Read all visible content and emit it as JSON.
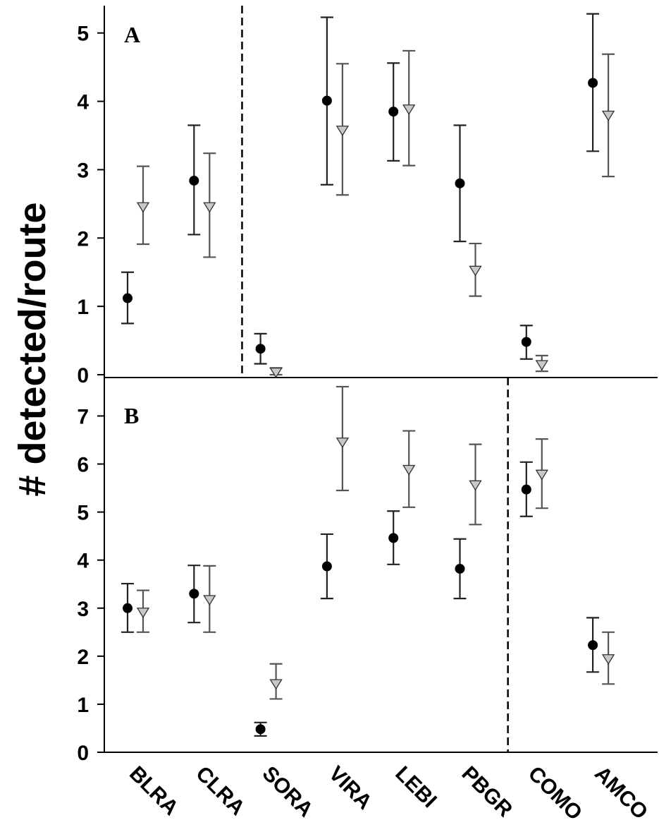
{
  "chart_data": {
    "type": "scatter",
    "ylabel": "# detected/route",
    "categories": [
      "BLRA",
      "CLRA",
      "SORA",
      "VIRA",
      "LEBI",
      "PBGR",
      "COMO",
      "AMCO"
    ],
    "panels": [
      {
        "label": "A",
        "ylim": [
          0,
          5.4
        ],
        "yticks": [
          "0",
          "1",
          "2",
          "3",
          "4",
          "5"
        ],
        "divider_after_category": "CLRA",
        "series": [
          {
            "marker": "circle",
            "color": "#000000",
            "values": [
              1.12,
              2.84,
              0.38,
              4.01,
              3.85,
              2.8,
              0.48,
              4.27
            ],
            "lower": [
              0.75,
              2.05,
              0.16,
              2.78,
              3.13,
              1.95,
              0.23,
              3.27
            ],
            "upper": [
              1.5,
              3.65,
              0.6,
              5.23,
              4.56,
              3.65,
              0.72,
              5.28
            ]
          },
          {
            "marker": "triangle-down",
            "color": "#c8c8c8",
            "values": [
              2.46,
              2.46,
              0.04,
              3.58,
              3.89,
              1.53,
              0.15,
              3.8
            ],
            "lower": [
              1.91,
              1.72,
              0.0,
              2.63,
              3.06,
              1.15,
              0.05,
              2.9
            ],
            "upper": [
              3.05,
              3.24,
              0.1,
              4.55,
              4.74,
              1.92,
              0.28,
              4.69
            ]
          }
        ]
      },
      {
        "label": "B",
        "ylim": [
          0,
          7.8
        ],
        "yticks": [
          "0",
          "1",
          "2",
          "3",
          "4",
          "5",
          "6",
          "7"
        ],
        "divider_after_category": "PBGR",
        "series": [
          {
            "marker": "circle",
            "color": "#000000",
            "values": [
              3.0,
              3.3,
              0.48,
              3.87,
              4.46,
              3.82,
              5.47,
              2.23
            ],
            "lower": [
              2.5,
              2.7,
              0.34,
              3.2,
              3.91,
              3.2,
              4.91,
              1.67
            ],
            "upper": [
              3.51,
              3.89,
              0.62,
              4.54,
              5.02,
              4.44,
              6.04,
              2.8
            ]
          },
          {
            "marker": "triangle-down",
            "color": "#c8c8c8",
            "values": [
              2.92,
              3.18,
              1.43,
              6.46,
              5.89,
              5.57,
              5.79,
              1.95
            ],
            "lower": [
              2.5,
              2.5,
              1.11,
              5.45,
              5.1,
              4.74,
              5.08,
              1.42
            ],
            "upper": [
              3.37,
              3.88,
              1.84,
              7.61,
              6.69,
              6.41,
              6.52,
              2.5
            ]
          }
        ]
      }
    ]
  }
}
